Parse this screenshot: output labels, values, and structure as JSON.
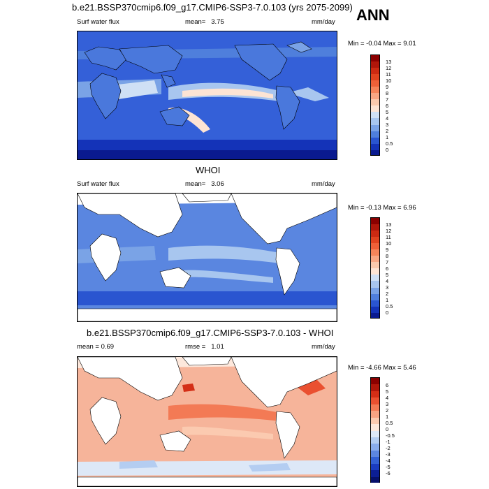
{
  "header": {
    "title": "b.e21.BSSP370cmip6.f09_g17.CMIP6-SSP3-7.0.103 (yrs 2075-2099)",
    "season": "ANN"
  },
  "panels": [
    {
      "id": "model",
      "title": "",
      "variable": "Surf water flux",
      "stat_label": "mean=",
      "stat_value": "3.75",
      "units": "mm/day",
      "minmax": "Min =  -0.04 Max =   9.01",
      "colorbar_labels": [
        "13",
        "12",
        "11",
        "10",
        "9",
        "8",
        "7",
        "6",
        "5",
        "4",
        "3",
        "2",
        "1",
        "0.5",
        "0"
      ],
      "colorbar_colors": [
        "#8b0000",
        "#b0160a",
        "#cc2a12",
        "#e0431f",
        "#ee6038",
        "#f5845a",
        "#f8a784",
        "#fac9ad",
        "#fde4d4",
        "#cfe0f5",
        "#a8c6ef",
        "#7aa3e6",
        "#4f7fdc",
        "#2a55d0",
        "#1433b8",
        "#0a1a8f"
      ]
    },
    {
      "id": "obs",
      "title": "WHOI",
      "variable": "Surf water flux",
      "stat_label": "mean=",
      "stat_value": "3.06",
      "units": "mm/day",
      "minmax": "Min =  -0.13 Max =   6.96",
      "colorbar_labels": [
        "13",
        "12",
        "11",
        "10",
        "9",
        "8",
        "7",
        "6",
        "5",
        "4",
        "3",
        "2",
        "1",
        "0.5",
        "0"
      ],
      "colorbar_colors": [
        "#8b0000",
        "#b0160a",
        "#cc2a12",
        "#e0431f",
        "#ee6038",
        "#f5845a",
        "#f8a784",
        "#fac9ad",
        "#fde4d4",
        "#cfe0f5",
        "#a8c6ef",
        "#7aa3e6",
        "#4f7fdc",
        "#2a55d0",
        "#1433b8",
        "#0a1a8f"
      ]
    },
    {
      "id": "diff",
      "title": "b.e21.BSSP370cmip6.f09_g17.CMIP6-SSP3-7.0.103 - WHOI",
      "variable": "",
      "left_stat": "mean =   0.69",
      "stat_label": "rmse =",
      "stat_value": "1.01",
      "units": "mm/day",
      "minmax": "Min =  -4.66 Max =   5.46",
      "colorbar_labels": [
        "6",
        "5",
        "4",
        "3",
        "2",
        "1",
        "0.5",
        "0",
        "-0.5",
        "-1",
        "-2",
        "-3",
        "-4",
        "-5",
        "-6"
      ],
      "colorbar_colors": [
        "#8b0000",
        "#b0160a",
        "#d42e16",
        "#ea5030",
        "#f37a55",
        "#f8a383",
        "#fbcab0",
        "#fde8dc",
        "#dde8f7",
        "#b4cdf1",
        "#89aceb",
        "#5c86e0",
        "#3360d4",
        "#1a3cc0",
        "#0c1e94",
        "#06106b"
      ]
    }
  ],
  "colors": {
    "land_fill": "#ffffff",
    "coast": "#000000",
    "model_ocean_base": "#3a66d8",
    "obs_ocean_base": "#5a86e0",
    "diff_ocean_base": "#f6b49a"
  }
}
